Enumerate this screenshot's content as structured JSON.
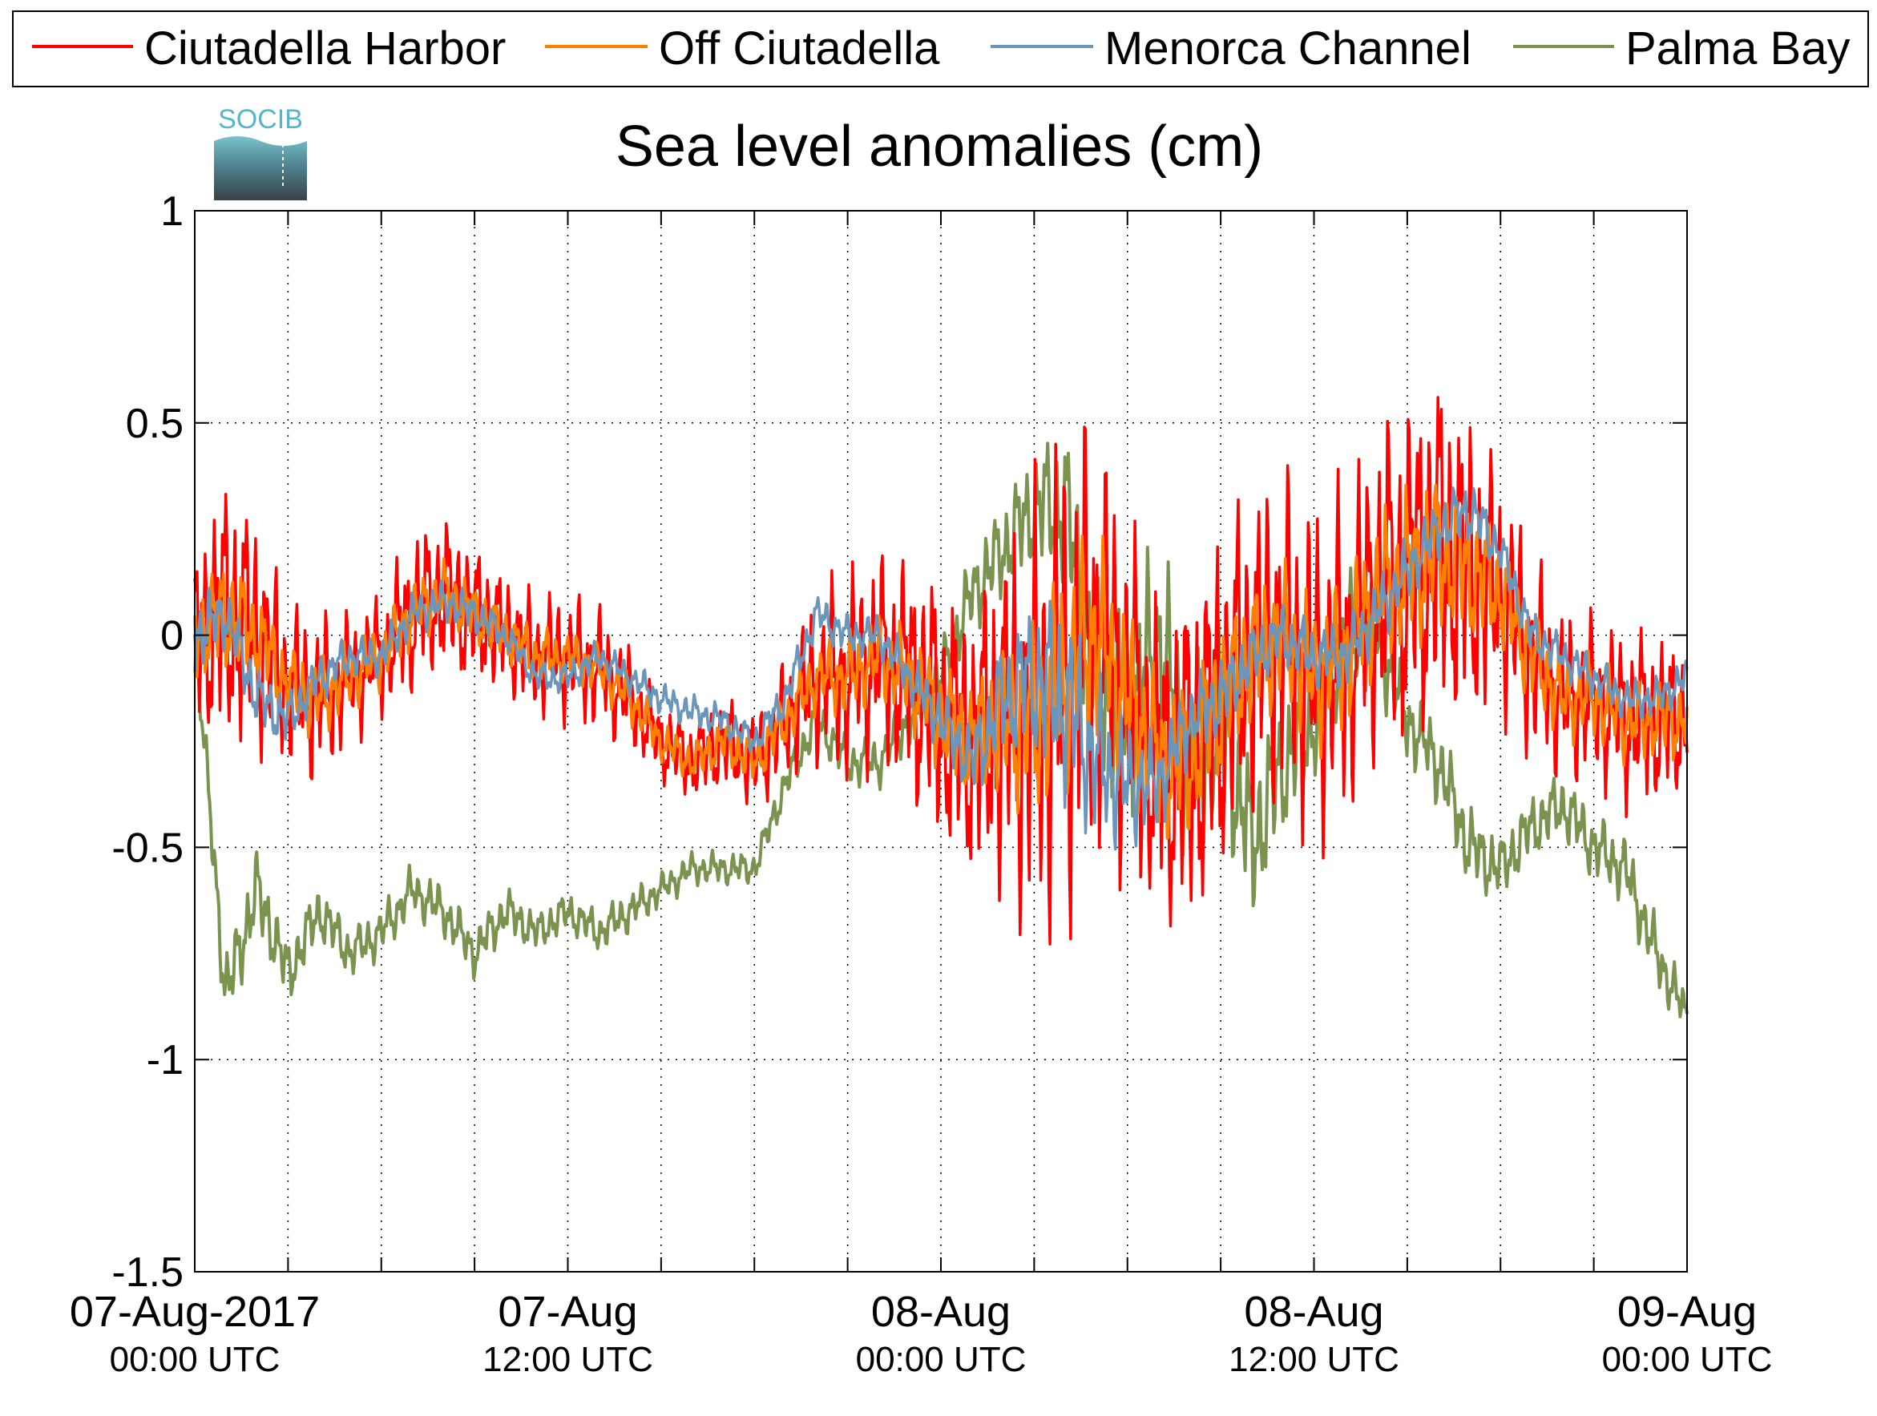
{
  "chart_data": {
    "type": "line",
    "title": "Sea level anomalies (cm)",
    "xlabel": "",
    "ylabel": "",
    "ylim": [
      -1.5,
      1
    ],
    "yticks": [
      -1.5,
      -1,
      -0.5,
      0,
      0.5,
      1
    ],
    "y_tick_labels": [
      "-1.5",
      "-1",
      "-0.5",
      "0",
      "0.5",
      "1"
    ],
    "xlim_hours": [
      0,
      48
    ],
    "x_tick_hours": [
      0,
      3,
      6,
      9,
      12,
      15,
      18,
      21,
      24,
      27,
      30,
      33,
      36,
      39,
      42,
      45,
      48
    ],
    "x_labels": [
      {
        "hour": 0,
        "date": "07-Aug-2017",
        "time": "00:00 UTC"
      },
      {
        "hour": 12,
        "date": "07-Aug",
        "time": "12:00 UTC"
      },
      {
        "hour": 24,
        "date": "08-Aug",
        "time": "00:00 UTC"
      },
      {
        "hour": 36,
        "date": "08-Aug",
        "time": "12:00 UTC"
      },
      {
        "hour": 48,
        "date": "09-Aug",
        "time": "00:00 UTC"
      }
    ],
    "grid": true,
    "legend_position": "top",
    "logo_text": "SOCIB",
    "series": [
      {
        "name": "Ciutadella Harbor",
        "color": "#ff0000",
        "x": [
          0,
          1,
          2,
          3,
          4,
          5,
          6,
          7,
          8,
          9,
          10,
          11,
          12,
          13,
          14,
          15,
          16,
          17,
          18,
          19,
          20,
          21,
          22,
          23,
          24,
          25,
          26,
          27,
          28,
          29,
          30,
          31,
          32,
          33,
          34,
          35,
          36,
          37,
          38,
          39,
          40,
          41,
          42,
          43,
          44,
          45,
          46,
          47,
          48
        ],
        "y": [
          0.0,
          0.05,
          0.0,
          -0.12,
          -0.15,
          -0.1,
          -0.05,
          0.05,
          0.1,
          0.05,
          0.0,
          -0.05,
          -0.05,
          -0.08,
          -0.15,
          -0.25,
          -0.3,
          -0.25,
          -0.3,
          -0.2,
          -0.1,
          -0.1,
          -0.05,
          -0.1,
          -0.2,
          -0.25,
          -0.2,
          -0.2,
          -0.1,
          0.0,
          -0.15,
          -0.3,
          -0.3,
          -0.15,
          -0.05,
          0.0,
          -0.1,
          -0.05,
          0.1,
          0.15,
          0.2,
          0.15,
          0.1,
          -0.05,
          -0.15,
          -0.15,
          -0.2,
          -0.2,
          -0.2
        ],
        "noise": [
          0.25,
          0.35,
          0.3,
          0.2,
          0.2,
          0.15,
          0.15,
          0.2,
          0.2,
          0.18,
          0.15,
          0.15,
          0.15,
          0.15,
          0.12,
          0.1,
          0.1,
          0.12,
          0.12,
          0.15,
          0.2,
          0.25,
          0.25,
          0.3,
          0.35,
          0.35,
          0.45,
          0.55,
          0.6,
          0.5,
          0.45,
          0.4,
          0.45,
          0.45,
          0.4,
          0.4,
          0.4,
          0.4,
          0.4,
          0.45,
          0.45,
          0.4,
          0.3,
          0.25,
          0.2,
          0.2,
          0.22,
          0.22,
          0.2
        ]
      },
      {
        "name": "Off Ciutadella",
        "color": "#ff8000",
        "x": [
          0,
          1,
          2,
          3,
          4,
          5,
          6,
          7,
          8,
          9,
          10,
          11,
          12,
          13,
          14,
          15,
          16,
          17,
          18,
          19,
          20,
          21,
          22,
          23,
          24,
          25,
          26,
          27,
          28,
          29,
          30,
          31,
          32,
          33,
          34,
          35,
          36,
          37,
          38,
          39,
          40,
          41,
          42,
          43,
          44,
          45,
          46,
          47,
          48
        ],
        "y": [
          0.0,
          0.05,
          0.0,
          -0.12,
          -0.15,
          -0.1,
          -0.05,
          0.05,
          0.1,
          0.05,
          0.0,
          -0.05,
          -0.05,
          -0.08,
          -0.15,
          -0.25,
          -0.3,
          -0.25,
          -0.3,
          -0.2,
          -0.1,
          -0.1,
          -0.05,
          -0.1,
          -0.2,
          -0.25,
          -0.2,
          -0.2,
          -0.1,
          0.0,
          -0.15,
          -0.3,
          -0.3,
          -0.15,
          -0.05,
          0.0,
          -0.1,
          -0.05,
          0.1,
          0.15,
          0.2,
          0.15,
          0.1,
          -0.05,
          -0.15,
          -0.15,
          -0.2,
          -0.2,
          -0.2
        ],
        "noise": [
          0.12,
          0.15,
          0.12,
          0.1,
          0.1,
          0.08,
          0.08,
          0.08,
          0.08,
          0.08,
          0.07,
          0.07,
          0.06,
          0.06,
          0.06,
          0.05,
          0.05,
          0.06,
          0.06,
          0.07,
          0.08,
          0.1,
          0.1,
          0.12,
          0.14,
          0.15,
          0.2,
          0.25,
          0.28,
          0.25,
          0.22,
          0.2,
          0.2,
          0.2,
          0.18,
          0.18,
          0.18,
          0.18,
          0.18,
          0.2,
          0.2,
          0.18,
          0.14,
          0.12,
          0.1,
          0.1,
          0.1,
          0.1,
          0.1
        ]
      },
      {
        "name": "Menorca Channel",
        "color": "#6b96bc",
        "x": [
          0,
          1,
          2,
          3,
          4,
          5,
          6,
          7,
          8,
          9,
          10,
          11,
          12,
          13,
          14,
          15,
          16,
          17,
          18,
          19,
          20,
          21,
          22,
          23,
          24,
          25,
          26,
          27,
          28,
          29,
          30,
          31,
          32,
          33,
          34,
          35,
          36,
          37,
          38,
          39,
          40,
          41,
          42,
          43,
          44,
          45,
          46,
          47,
          48
        ],
        "y": [
          0.0,
          0.05,
          -0.15,
          -0.2,
          -0.1,
          -0.05,
          -0.05,
          0.05,
          0.08,
          0.05,
          0.0,
          -0.1,
          -0.1,
          -0.05,
          -0.1,
          -0.15,
          -0.18,
          -0.2,
          -0.25,
          -0.15,
          0.05,
          0.0,
          0.0,
          -0.1,
          -0.2,
          -0.3,
          -0.15,
          -0.1,
          -0.15,
          -0.3,
          -0.35,
          -0.35,
          -0.2,
          -0.15,
          -0.05,
          0.0,
          -0.05,
          -0.05,
          0.05,
          0.15,
          0.25,
          0.3,
          0.2,
          0.0,
          -0.05,
          -0.1,
          -0.15,
          -0.15,
          -0.1
        ],
        "noise": [
          0.1,
          0.08,
          0.08,
          0.07,
          0.06,
          0.05,
          0.05,
          0.05,
          0.05,
          0.05,
          0.04,
          0.04,
          0.04,
          0.04,
          0.04,
          0.04,
          0.04,
          0.04,
          0.04,
          0.05,
          0.05,
          0.05,
          0.05,
          0.06,
          0.08,
          0.1,
          0.15,
          0.2,
          0.25,
          0.2,
          0.15,
          0.12,
          0.1,
          0.1,
          0.08,
          0.08,
          0.08,
          0.08,
          0.08,
          0.08,
          0.08,
          0.08,
          0.06,
          0.06,
          0.05,
          0.05,
          0.05,
          0.05,
          0.05
        ]
      },
      {
        "name": "Palma Bay",
        "color": "#7a9450",
        "x": [
          0,
          1,
          2,
          3,
          4,
          5,
          6,
          7,
          8,
          9,
          10,
          11,
          12,
          13,
          14,
          15,
          16,
          17,
          18,
          19,
          20,
          21,
          22,
          23,
          24,
          25,
          26,
          27,
          28,
          29,
          30,
          31,
          32,
          33,
          34,
          35,
          36,
          37,
          38,
          39,
          40,
          41,
          42,
          43,
          44,
          45,
          46,
          47,
          48
        ],
        "y": [
          0.0,
          -0.85,
          -0.6,
          -0.8,
          -0.65,
          -0.75,
          -0.7,
          -0.6,
          -0.65,
          -0.75,
          -0.65,
          -0.7,
          -0.65,
          -0.7,
          -0.65,
          -0.6,
          -0.55,
          -0.55,
          -0.55,
          -0.35,
          -0.2,
          -0.3,
          -0.3,
          -0.2,
          -0.1,
          0.1,
          0.2,
          0.3,
          0.3,
          -0.1,
          -0.2,
          0.0,
          -0.3,
          -0.2,
          -0.5,
          -0.3,
          -0.2,
          0.0,
          0.0,
          -0.2,
          -0.3,
          -0.5,
          -0.55,
          -0.45,
          -0.4,
          -0.5,
          -0.55,
          -0.75,
          -0.9
        ],
        "noise": [
          0.05,
          0.1,
          0.1,
          0.08,
          0.07,
          0.06,
          0.06,
          0.06,
          0.06,
          0.06,
          0.06,
          0.05,
          0.05,
          0.05,
          0.05,
          0.04,
          0.04,
          0.04,
          0.04,
          0.05,
          0.06,
          0.06,
          0.06,
          0.07,
          0.08,
          0.1,
          0.12,
          0.15,
          0.2,
          0.25,
          0.25,
          0.25,
          0.25,
          0.25,
          0.2,
          0.18,
          0.15,
          0.15,
          0.12,
          0.1,
          0.1,
          0.1,
          0.08,
          0.08,
          0.08,
          0.08,
          0.08,
          0.08,
          0.06
        ]
      }
    ]
  }
}
